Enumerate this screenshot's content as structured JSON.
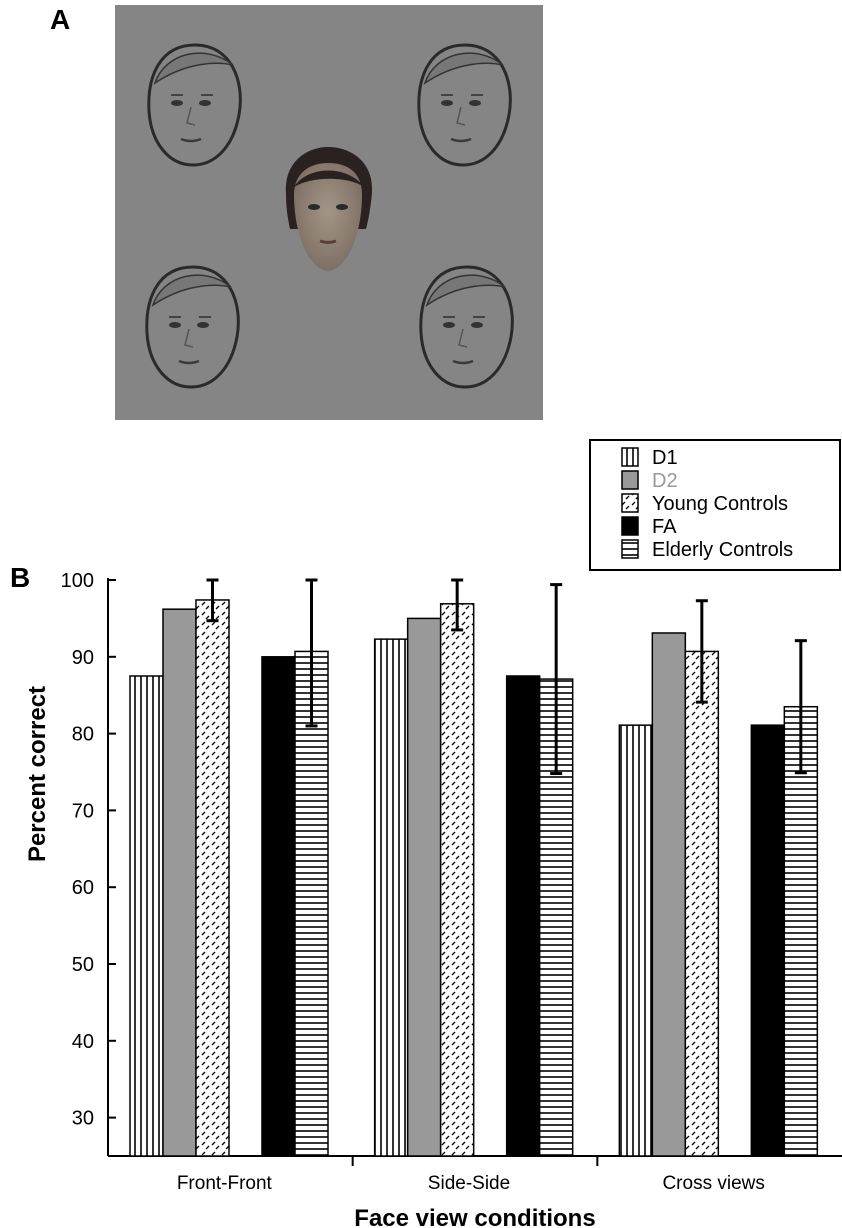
{
  "panels": {
    "a_label": "A",
    "b_label": "B"
  },
  "chart_data": {
    "type": "bar",
    "title": "",
    "xlabel": "Face view conditions",
    "ylabel": "Percent correct",
    "ylim": [
      25,
      100
    ],
    "yticks": [
      30,
      40,
      50,
      60,
      70,
      80,
      90,
      100
    ],
    "grid": false,
    "legend_position": "top-right",
    "categories": [
      "Front-Front",
      "Side-Side",
      "Cross views"
    ],
    "series": [
      {
        "name": "D1",
        "values": [
          87.5,
          92.3,
          81.1
        ],
        "fill": "vertical-stripes",
        "text_color": "#000000"
      },
      {
        "name": "D2",
        "values": [
          96.2,
          95.0,
          93.1
        ],
        "fill": "#999999",
        "text_color": "#999999"
      },
      {
        "name": "Young Controls",
        "values": [
          97.4,
          96.9,
          90.7
        ],
        "fill": "dashes",
        "text_color": "#000000",
        "error": [
          2.7,
          3.4,
          6.6
        ]
      },
      {
        "name": "FA",
        "values": [
          90.0,
          87.5,
          81.1
        ],
        "fill": "#000000",
        "text_color": "#000000"
      },
      {
        "name": "Elderly Controls",
        "values": [
          90.7,
          87.1,
          83.5
        ],
        "fill": "horizontal-stripes",
        "text_color": "#000000",
        "error": [
          9.7,
          12.3,
          8.6
        ]
      }
    ]
  }
}
